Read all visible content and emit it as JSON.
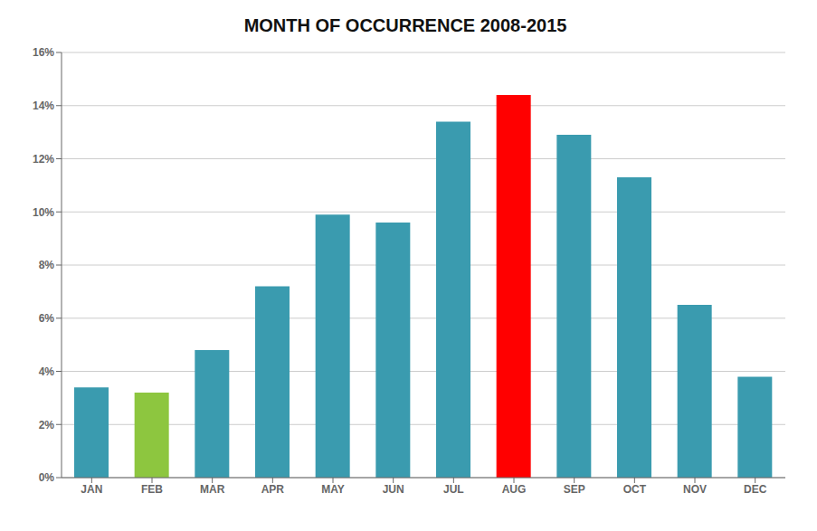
{
  "chart_data": {
    "type": "bar",
    "title": "MONTH OF OCCURRENCE 2008-2015",
    "categories": [
      "JAN",
      "FEB",
      "MAR",
      "APR",
      "MAY",
      "JUN",
      "JUL",
      "AUG",
      "SEP",
      "OCT",
      "NOV",
      "DEC"
    ],
    "values": [
      3.4,
      3.2,
      4.8,
      7.2,
      9.9,
      9.6,
      13.4,
      14.4,
      12.9,
      11.3,
      6.5,
      3.8
    ],
    "colors": [
      "#3A9BAF",
      "#8DC63F",
      "#3A9BAF",
      "#3A9BAF",
      "#3A9BAF",
      "#3A9BAF",
      "#3A9BAF",
      "#FF0000",
      "#3A9BAF",
      "#3A9BAF",
      "#3A9BAF",
      "#3A9BAF"
    ],
    "ylim": [
      0,
      16
    ],
    "yticks": [
      {
        "value": 0,
        "label": "0%"
      },
      {
        "value": 2,
        "label": "2%"
      },
      {
        "value": 4,
        "label": "4%"
      },
      {
        "value": 6,
        "label": "6%"
      },
      {
        "value": 8,
        "label": "8%"
      },
      {
        "value": 10,
        "label": "10%"
      },
      {
        "value": 12,
        "label": "12%"
      },
      {
        "value": 14,
        "label": "14%"
      },
      {
        "value": 16,
        "label": "16%"
      }
    ],
    "grid": true
  }
}
